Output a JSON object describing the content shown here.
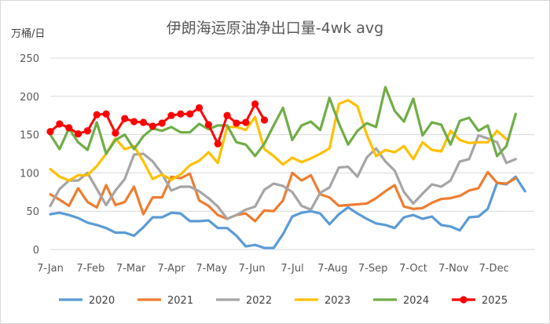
{
  "chart_data": {
    "type": "line",
    "title": "伊朗海运原油净出口量-4wk avg",
    "ylabel": "万桶/日",
    "ylim": [
      0,
      250
    ],
    "yticks": [
      "0",
      "50",
      "100",
      "150",
      "200",
      "250"
    ],
    "x_tick_labels": [
      "7-Jan",
      "7-Feb",
      "7-Mar",
      "7-Apr",
      "7-May",
      "7-Jun",
      "7-Jul",
      "7-Aug",
      "7-Sep",
      "7-Oct",
      "7-Nov",
      "7-Dec"
    ],
    "grid": "horizontal",
    "legend_position": "bottom",
    "series": [
      {
        "name": "2020",
        "color": "#5B9BD5",
        "markers": false,
        "values": [
          46,
          48,
          45,
          41,
          35,
          32,
          28,
          22,
          22,
          18,
          29,
          42,
          42,
          48,
          47,
          37,
          37,
          38,
          28,
          28,
          18,
          4,
          6,
          2,
          2,
          20,
          43,
          48,
          50,
          47,
          33,
          46,
          55,
          47,
          40,
          34,
          32,
          28,
          42,
          45,
          40,
          43,
          32,
          30,
          25,
          42,
          43,
          53,
          87,
          85,
          95,
          76
        ]
      },
      {
        "name": "2021",
        "color": "#ED7D31",
        "markers": false,
        "values": [
          72,
          65,
          57,
          80,
          62,
          55,
          84,
          58,
          62,
          82,
          46,
          68,
          68,
          95,
          93,
          99,
          64,
          57,
          45,
          40,
          45,
          47,
          37,
          51,
          50,
          64,
          100,
          90,
          97,
          72,
          68,
          57,
          58,
          59,
          60,
          67,
          76,
          84,
          56,
          53,
          54,
          61,
          66,
          67,
          70,
          77,
          80,
          101,
          87,
          86,
          93
        ]
      },
      {
        "name": "2022",
        "color": "#A5A5A5",
        "markers": false,
        "values": [
          57,
          79,
          90,
          90,
          100,
          79,
          58,
          77,
          92,
          124,
          125,
          115,
          99,
          77,
          82,
          82,
          76,
          67,
          56,
          40,
          45,
          52,
          56,
          78,
          86,
          83,
          75,
          57,
          52,
          74,
          81,
          107,
          108,
          95,
          120,
          132,
          115,
          103,
          75,
          60,
          73,
          85,
          82,
          90,
          115,
          118,
          149,
          145,
          140,
          113,
          118
        ]
      },
      {
        "name": "2023",
        "color": "#FFC000",
        "markers": false,
        "values": [
          105,
          95,
          90,
          97,
          97,
          109,
          125,
          145,
          131,
          135,
          115,
          92,
          98,
          91,
          98,
          110,
          116,
          127,
          113,
          160,
          160,
          156,
          173,
          131,
          122,
          111,
          120,
          114,
          119,
          125,
          132,
          190,
          195,
          187,
          150,
          122,
          130,
          127,
          135,
          118,
          140,
          130,
          128,
          155,
          143,
          139,
          140,
          140,
          155,
          144
        ]
      },
      {
        "name": "2024",
        "color": "#70AD47",
        "markers": false,
        "values": [
          150,
          131,
          158,
          140,
          130,
          166,
          125,
          143,
          150,
          131,
          148,
          158,
          155,
          160,
          153,
          153,
          164,
          157,
          162,
          162,
          140,
          137,
          122,
          138,
          162,
          185,
          143,
          162,
          167,
          156,
          198,
          165,
          137,
          155,
          165,
          160,
          212,
          181,
          167,
          197,
          149,
          166,
          163,
          137,
          168,
          172,
          155,
          162,
          122,
          135,
          177
        ]
      },
      {
        "name": "2025",
        "color": "#FF0000",
        "markers": true,
        "values": [
          154,
          164,
          159,
          151,
          155,
          176,
          177,
          152,
          171,
          167,
          166,
          161,
          165,
          175,
          177,
          177,
          185,
          163,
          138,
          175,
          165,
          166,
          190,
          169
        ]
      }
    ]
  }
}
